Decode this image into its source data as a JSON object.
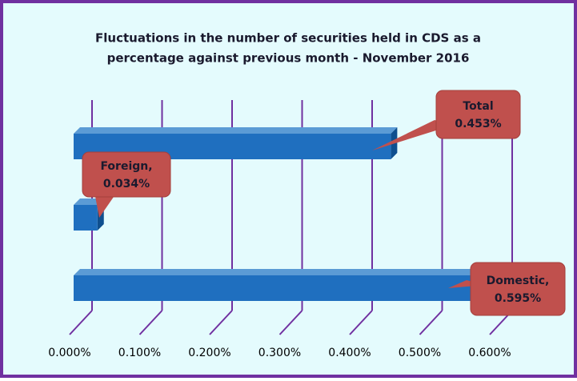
{
  "chart_data": {
    "type": "bar",
    "title": [
      "Fluctuations in the number of securities held in CDS as a",
      "percentage against previous month - November 2016"
    ],
    "categories": [
      "Total",
      "Foreign,",
      "Domestic,"
    ],
    "values": [
      0.453,
      0.034,
      0.595
    ],
    "value_labels": [
      "0.453%",
      "0.034%",
      "0.595%"
    ],
    "color": "#1f6fbf",
    "xlim": [
      0,
      0.6
    ],
    "xticks": [
      {
        "value": 0,
        "label": "0.000%"
      },
      {
        "value": 0.1,
        "label": "0.100%"
      },
      {
        "value": 0.2,
        "label": "0.200%"
      },
      {
        "value": 0.3,
        "label": "0.300%"
      },
      {
        "value": 0.4,
        "label": "0.400%"
      },
      {
        "value": 0.5,
        "label": "0.500%"
      },
      {
        "value": 0.6,
        "label": "0.600%"
      }
    ],
    "grid": true,
    "label_color": "#c0504d",
    "grid_color": "#7030a0"
  }
}
